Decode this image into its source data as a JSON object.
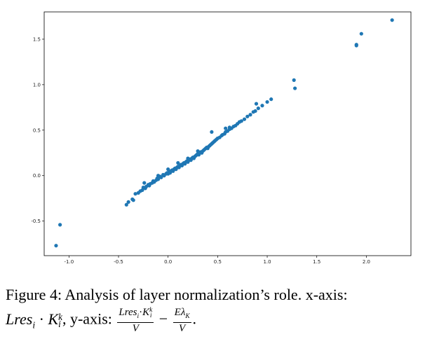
{
  "chart_data": {
    "type": "scatter",
    "title": "",
    "xlabel": "",
    "ylabel": "",
    "xlim": [
      -1.25,
      2.45
    ],
    "ylim": [
      -0.88,
      1.8
    ],
    "xticks": [
      -1.0,
      -0.5,
      0.0,
      0.5,
      1.0,
      1.5,
      2.0
    ],
    "xtick_labels": [
      "-1.0",
      "-0.5",
      "0.0",
      "0.5",
      "1.0",
      "1.5",
      "2.0"
    ],
    "yticks": [
      -0.5,
      0.0,
      0.5,
      1.0,
      1.5
    ],
    "ytick_labels": [
      "-0.5",
      "0.0",
      "0.5",
      "1.0",
      "1.5"
    ],
    "color": "#1f77b4",
    "grid": false,
    "legend": "none",
    "points": [
      [
        -1.13,
        -0.77
      ],
      [
        -1.09,
        -0.54
      ],
      [
        -0.42,
        -0.32
      ],
      [
        -0.4,
        -0.29
      ],
      [
        -0.36,
        -0.26
      ],
      [
        -0.35,
        -0.27
      ],
      [
        -0.33,
        -0.2
      ],
      [
        -0.3,
        -0.19
      ],
      [
        -0.28,
        -0.17
      ],
      [
        -0.26,
        -0.16
      ],
      [
        -0.25,
        -0.13
      ],
      [
        -0.23,
        -0.14
      ],
      [
        -0.22,
        -0.12
      ],
      [
        -0.2,
        -0.1
      ],
      [
        -0.19,
        -0.11
      ],
      [
        -0.18,
        -0.09
      ],
      [
        -0.16,
        -0.08
      ],
      [
        -0.15,
        -0.06
      ],
      [
        -0.14,
        -0.07
      ],
      [
        -0.12,
        -0.05
      ],
      [
        -0.11,
        -0.03
      ],
      [
        -0.1,
        -0.04
      ],
      [
        -0.08,
        -0.01
      ],
      [
        -0.07,
        -0.02
      ],
      [
        -0.05,
        0.01
      ],
      [
        -0.04,
        0.0
      ],
      [
        -0.02,
        0.02
      ],
      [
        -0.01,
        0.03
      ],
      [
        0.0,
        0.02
      ],
      [
        0.01,
        0.04
      ],
      [
        0.02,
        0.03
      ],
      [
        0.03,
        0.05
      ],
      [
        0.04,
        0.06
      ],
      [
        0.05,
        0.05
      ],
      [
        0.06,
        0.07
      ],
      [
        0.07,
        0.08
      ],
      [
        0.08,
        0.07
      ],
      [
        0.09,
        0.09
      ],
      [
        0.1,
        0.1
      ],
      [
        0.11,
        0.09
      ],
      [
        0.12,
        0.11
      ],
      [
        0.13,
        0.12
      ],
      [
        0.14,
        0.11
      ],
      [
        0.15,
        0.13
      ],
      [
        0.16,
        0.14
      ],
      [
        0.17,
        0.13
      ],
      [
        0.18,
        0.15
      ],
      [
        0.19,
        0.16
      ],
      [
        0.2,
        0.15
      ],
      [
        0.21,
        0.17
      ],
      [
        0.22,
        0.18
      ],
      [
        0.23,
        0.17
      ],
      [
        0.24,
        0.19
      ],
      [
        0.25,
        0.2
      ],
      [
        0.26,
        0.19
      ],
      [
        0.27,
        0.21
      ],
      [
        0.28,
        0.22
      ],
      [
        0.29,
        0.23
      ],
      [
        0.3,
        0.24
      ],
      [
        0.31,
        0.23
      ],
      [
        0.32,
        0.25
      ],
      [
        0.33,
        0.26
      ],
      [
        0.34,
        0.25
      ],
      [
        0.35,
        0.27
      ],
      [
        0.36,
        0.28
      ],
      [
        0.37,
        0.29
      ],
      [
        0.38,
        0.3
      ],
      [
        0.39,
        0.31
      ],
      [
        0.4,
        0.3
      ],
      [
        0.41,
        0.32
      ],
      [
        0.42,
        0.33
      ],
      [
        0.43,
        0.34
      ],
      [
        0.44,
        0.35
      ],
      [
        0.45,
        0.36
      ],
      [
        0.46,
        0.37
      ],
      [
        0.47,
        0.38
      ],
      [
        0.48,
        0.39
      ],
      [
        0.49,
        0.4
      ],
      [
        0.5,
        0.41
      ],
      [
        0.52,
        0.42
      ],
      [
        0.54,
        0.44
      ],
      [
        0.55,
        0.45
      ],
      [
        0.57,
        0.46
      ],
      [
        0.58,
        0.48
      ],
      [
        0.6,
        0.49
      ],
      [
        0.62,
        0.51
      ],
      [
        0.64,
        0.52
      ],
      [
        0.66,
        0.54
      ],
      [
        0.68,
        0.55
      ],
      [
        0.7,
        0.57
      ],
      [
        0.72,
        0.59
      ],
      [
        0.74,
        0.6
      ],
      [
        0.77,
        0.62
      ],
      [
        0.8,
        0.65
      ],
      [
        0.83,
        0.67
      ],
      [
        0.86,
        0.7
      ],
      [
        0.88,
        0.71
      ],
      [
        0.91,
        0.74
      ],
      [
        0.95,
        0.77
      ],
      [
        1.0,
        0.81
      ],
      [
        1.04,
        0.84
      ],
      [
        -0.24,
        -0.08
      ],
      [
        -0.1,
        0.0
      ],
      [
        0.0,
        0.07
      ],
      [
        0.1,
        0.14
      ],
      [
        0.2,
        0.19
      ],
      [
        0.3,
        0.27
      ],
      [
        0.44,
        0.48
      ],
      [
        0.58,
        0.52
      ],
      [
        0.62,
        0.53
      ],
      [
        0.89,
        0.79
      ],
      [
        1.27,
        1.05
      ],
      [
        1.28,
        0.96
      ],
      [
        1.9,
        1.43
      ],
      [
        1.9,
        1.44
      ],
      [
        1.95,
        1.56
      ],
      [
        2.26,
        1.71
      ]
    ]
  },
  "caption": {
    "prefix": "Figure 4: Analysis of layer normalization’s role. x-axis:",
    "xexpr_base": "Lres",
    "xexpr_sub": "i",
    "dot": " · ",
    "K": "K",
    "K_sup": "k",
    "K_sub": "i",
    "yaxis_label": ", y-axis: ",
    "frac1_num_base": "Lres",
    "frac1_num_sub": "i",
    "frac1_num_dot": "·",
    "frac1_num_K": "K",
    "frac1_num_K_sup": "k",
    "frac1_num_K_sub": "i",
    "frac1_den": "V",
    "minus": " − ",
    "frac2_num_E": "Eλ",
    "frac2_num_sub": "K",
    "frac2_den": "V",
    "end": "."
  }
}
